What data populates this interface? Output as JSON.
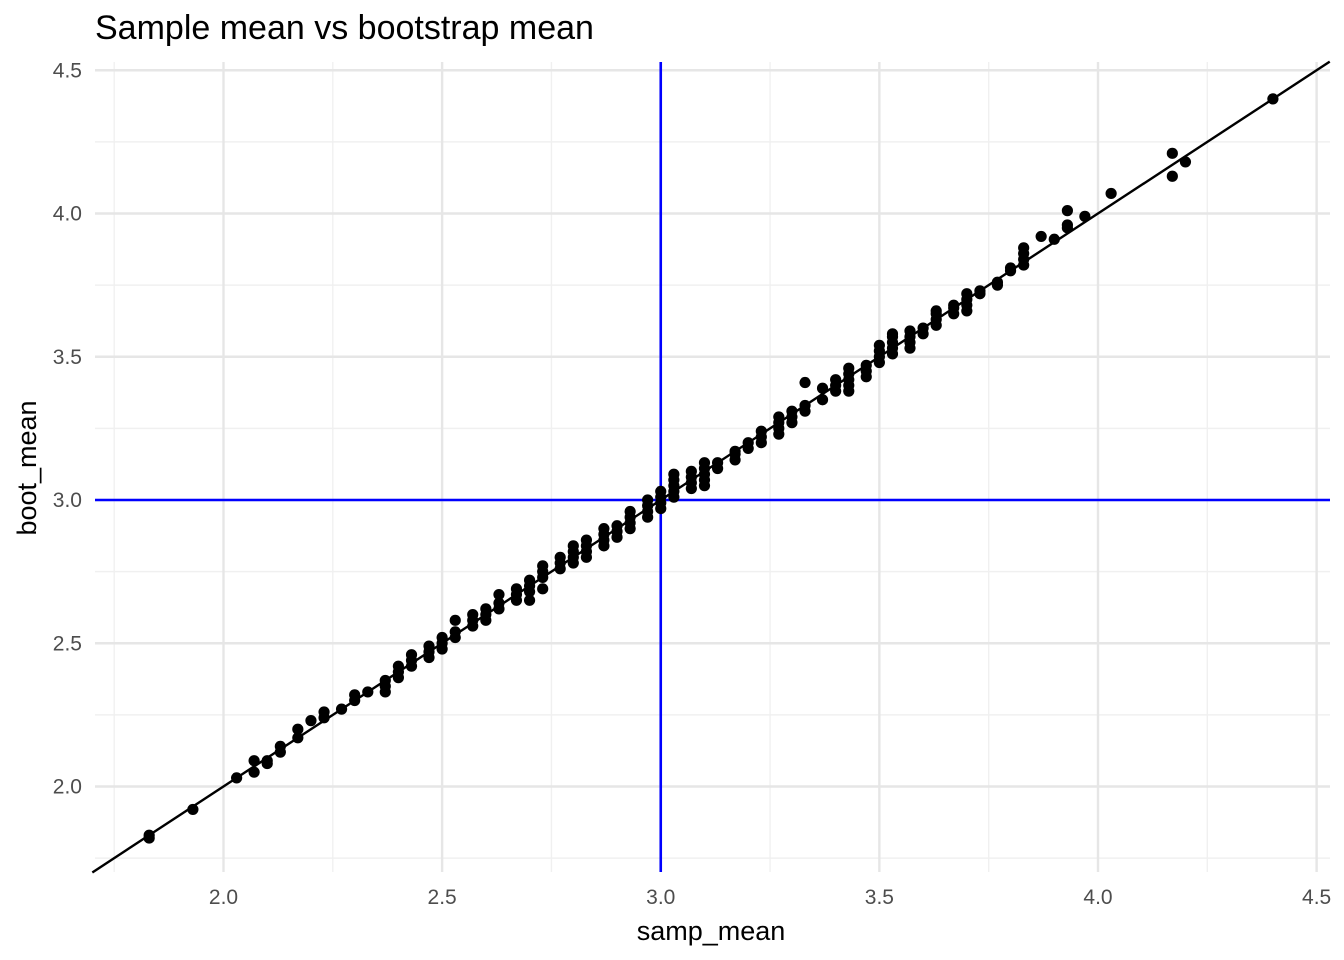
{
  "chart_data": {
    "type": "scatter",
    "title": "Sample mean vs bootstrap mean",
    "xlabel": "samp_mean",
    "ylabel": "boot_mean",
    "xlim": [
      1.7,
      4.53
    ],
    "ylim": [
      1.7,
      4.52
    ],
    "x_ticks": [
      "2.0",
      "2.5",
      "3.0",
      "3.5",
      "4.0",
      "4.5"
    ],
    "y_ticks": [
      "2.0",
      "2.5",
      "3.0",
      "3.5",
      "4.0",
      "4.5"
    ],
    "x_tick_values": [
      2.0,
      2.5,
      3.0,
      3.5,
      4.0,
      4.5
    ],
    "y_tick_values": [
      2.0,
      2.5,
      3.0,
      3.5,
      4.0,
      4.5
    ],
    "grid": true,
    "reference_lines": {
      "vertical_x": 3.0,
      "horizontal_y": 3.0,
      "color": "#0000ff"
    },
    "identity_line": {
      "slope": 1,
      "intercept": 0,
      "color": "#000000"
    },
    "point_color": "#000000",
    "points": [
      [
        1.83,
        1.82
      ],
      [
        1.83,
        1.83
      ],
      [
        1.93,
        1.92
      ],
      [
        2.03,
        2.03
      ],
      [
        2.07,
        2.05
      ],
      [
        2.07,
        2.09
      ],
      [
        2.1,
        2.08
      ],
      [
        2.1,
        2.09
      ],
      [
        2.13,
        2.12
      ],
      [
        2.13,
        2.14
      ],
      [
        2.17,
        2.17
      ],
      [
        2.17,
        2.2
      ],
      [
        2.2,
        2.23
      ],
      [
        2.23,
        2.24
      ],
      [
        2.23,
        2.26
      ],
      [
        2.27,
        2.27
      ],
      [
        2.3,
        2.3
      ],
      [
        2.3,
        2.32
      ],
      [
        2.33,
        2.33
      ],
      [
        2.37,
        2.33
      ],
      [
        2.37,
        2.35
      ],
      [
        2.37,
        2.37
      ],
      [
        2.4,
        2.38
      ],
      [
        2.4,
        2.4
      ],
      [
        2.4,
        2.42
      ],
      [
        2.43,
        2.42
      ],
      [
        2.43,
        2.44
      ],
      [
        2.43,
        2.46
      ],
      [
        2.47,
        2.45
      ],
      [
        2.47,
        2.47
      ],
      [
        2.47,
        2.49
      ],
      [
        2.5,
        2.48
      ],
      [
        2.5,
        2.5
      ],
      [
        2.5,
        2.52
      ],
      [
        2.53,
        2.52
      ],
      [
        2.53,
        2.54
      ],
      [
        2.53,
        2.58
      ],
      [
        2.57,
        2.56
      ],
      [
        2.57,
        2.58
      ],
      [
        2.57,
        2.6
      ],
      [
        2.6,
        2.58
      ],
      [
        2.6,
        2.6
      ],
      [
        2.6,
        2.62
      ],
      [
        2.63,
        2.62
      ],
      [
        2.63,
        2.64
      ],
      [
        2.63,
        2.67
      ],
      [
        2.67,
        2.65
      ],
      [
        2.67,
        2.67
      ],
      [
        2.67,
        2.69
      ],
      [
        2.7,
        2.65
      ],
      [
        2.7,
        2.68
      ],
      [
        2.7,
        2.7
      ],
      [
        2.7,
        2.72
      ],
      [
        2.73,
        2.69
      ],
      [
        2.73,
        2.73
      ],
      [
        2.73,
        2.75
      ],
      [
        2.73,
        2.77
      ],
      [
        2.77,
        2.76
      ],
      [
        2.77,
        2.78
      ],
      [
        2.77,
        2.8
      ],
      [
        2.8,
        2.78
      ],
      [
        2.8,
        2.8
      ],
      [
        2.8,
        2.82
      ],
      [
        2.8,
        2.84
      ],
      [
        2.83,
        2.8
      ],
      [
        2.83,
        2.82
      ],
      [
        2.83,
        2.84
      ],
      [
        2.83,
        2.86
      ],
      [
        2.87,
        2.84
      ],
      [
        2.87,
        2.86
      ],
      [
        2.87,
        2.88
      ],
      [
        2.87,
        2.9
      ],
      [
        2.9,
        2.87
      ],
      [
        2.9,
        2.89
      ],
      [
        2.9,
        2.91
      ],
      [
        2.93,
        2.9
      ],
      [
        2.93,
        2.92
      ],
      [
        2.93,
        2.94
      ],
      [
        2.93,
        2.96
      ],
      [
        2.97,
        2.94
      ],
      [
        2.97,
        2.96
      ],
      [
        2.97,
        2.98
      ],
      [
        2.97,
        3.0
      ],
      [
        3.0,
        2.97
      ],
      [
        3.0,
        2.99
      ],
      [
        3.0,
        3.01
      ],
      [
        3.0,
        3.03
      ],
      [
        3.03,
        3.01
      ],
      [
        3.03,
        3.03
      ],
      [
        3.03,
        3.05
      ],
      [
        3.03,
        3.07
      ],
      [
        3.03,
        3.09
      ],
      [
        3.07,
        3.04
      ],
      [
        3.07,
        3.06
      ],
      [
        3.07,
        3.08
      ],
      [
        3.07,
        3.1
      ],
      [
        3.1,
        3.05
      ],
      [
        3.1,
        3.07
      ],
      [
        3.1,
        3.09
      ],
      [
        3.1,
        3.11
      ],
      [
        3.1,
        3.13
      ],
      [
        3.13,
        3.11
      ],
      [
        3.13,
        3.13
      ],
      [
        3.17,
        3.14
      ],
      [
        3.17,
        3.16
      ],
      [
        3.17,
        3.17
      ],
      [
        3.2,
        3.18
      ],
      [
        3.2,
        3.2
      ],
      [
        3.23,
        3.2
      ],
      [
        3.23,
        3.22
      ],
      [
        3.23,
        3.24
      ],
      [
        3.27,
        3.23
      ],
      [
        3.27,
        3.25
      ],
      [
        3.27,
        3.27
      ],
      [
        3.27,
        3.29
      ],
      [
        3.3,
        3.27
      ],
      [
        3.3,
        3.29
      ],
      [
        3.3,
        3.31
      ],
      [
        3.33,
        3.31
      ],
      [
        3.33,
        3.33
      ],
      [
        3.33,
        3.41
      ],
      [
        3.37,
        3.35
      ],
      [
        3.37,
        3.39
      ],
      [
        3.4,
        3.38
      ],
      [
        3.4,
        3.4
      ],
      [
        3.4,
        3.42
      ],
      [
        3.43,
        3.38
      ],
      [
        3.43,
        3.4
      ],
      [
        3.43,
        3.42
      ],
      [
        3.43,
        3.44
      ],
      [
        3.43,
        3.46
      ],
      [
        3.47,
        3.43
      ],
      [
        3.47,
        3.45
      ],
      [
        3.47,
        3.47
      ],
      [
        3.5,
        3.48
      ],
      [
        3.5,
        3.5
      ],
      [
        3.5,
        3.52
      ],
      [
        3.5,
        3.54
      ],
      [
        3.53,
        3.51
      ],
      [
        3.53,
        3.53
      ],
      [
        3.53,
        3.55
      ],
      [
        3.53,
        3.57
      ],
      [
        3.53,
        3.58
      ],
      [
        3.57,
        3.53
      ],
      [
        3.57,
        3.55
      ],
      [
        3.57,
        3.57
      ],
      [
        3.57,
        3.59
      ],
      [
        3.6,
        3.58
      ],
      [
        3.6,
        3.6
      ],
      [
        3.63,
        3.61
      ],
      [
        3.63,
        3.63
      ],
      [
        3.63,
        3.65
      ],
      [
        3.63,
        3.66
      ],
      [
        3.67,
        3.65
      ],
      [
        3.67,
        3.67
      ],
      [
        3.67,
        3.68
      ],
      [
        3.7,
        3.66
      ],
      [
        3.7,
        3.68
      ],
      [
        3.7,
        3.7
      ],
      [
        3.7,
        3.72
      ],
      [
        3.73,
        3.72
      ],
      [
        3.73,
        3.73
      ],
      [
        3.77,
        3.75
      ],
      [
        3.77,
        3.76
      ],
      [
        3.8,
        3.8
      ],
      [
        3.8,
        3.81
      ],
      [
        3.83,
        3.82
      ],
      [
        3.83,
        3.84
      ],
      [
        3.83,
        3.86
      ],
      [
        3.83,
        3.88
      ],
      [
        3.87,
        3.92
      ],
      [
        3.9,
        3.91
      ],
      [
        3.93,
        3.95
      ],
      [
        3.93,
        3.96
      ],
      [
        3.93,
        4.01
      ],
      [
        3.97,
        3.99
      ],
      [
        4.03,
        4.07
      ],
      [
        4.17,
        4.13
      ],
      [
        4.17,
        4.21
      ],
      [
        4.2,
        4.18
      ],
      [
        4.4,
        4.4
      ]
    ]
  }
}
